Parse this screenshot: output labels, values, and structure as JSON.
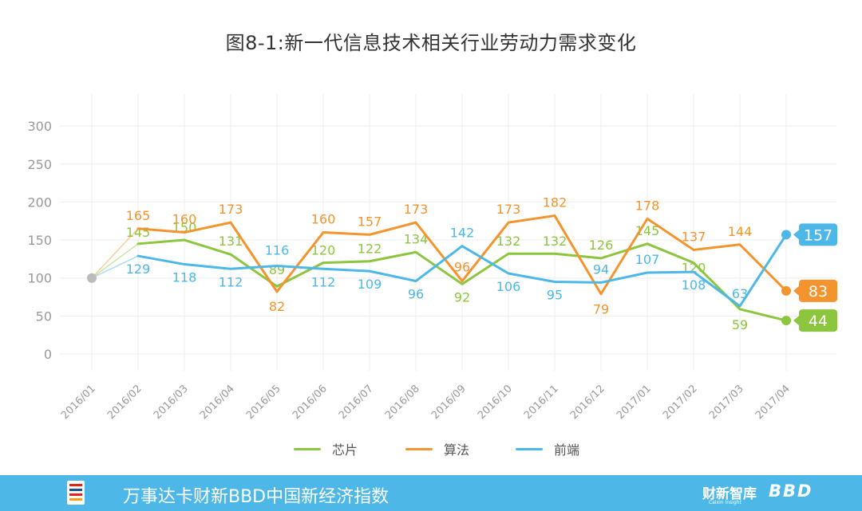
{
  "chart_data": {
    "type": "line",
    "title": "图8-1:新一代信息技术相关行业劳动力需求变化",
    "xlabel": "",
    "ylabel": "",
    "ylim": [
      0,
      300
    ],
    "yticks": [
      0,
      50,
      100,
      150,
      200,
      250,
      300
    ],
    "categories": [
      "2016/01",
      "2016/02",
      "2016/03",
      "2016/04",
      "2016/05",
      "2016/06",
      "2016/07",
      "2016/08",
      "2016/09",
      "2016/10",
      "2016/11",
      "2016/12",
      "2017/01",
      "2017/02",
      "2017/03",
      "2017/04"
    ],
    "base_value": 100,
    "series": [
      {
        "name": "芯片",
        "color": "#8cc63f",
        "values": [
          100,
          145,
          150,
          131,
          89,
          120,
          122,
          134,
          92,
          132,
          132,
          126,
          145,
          120,
          59,
          44
        ],
        "end_label": "44"
      },
      {
        "name": "算法",
        "color": "#f4942e",
        "values": [
          100,
          165,
          160,
          173,
          82,
          160,
          157,
          173,
          96,
          173,
          182,
          79,
          178,
          137,
          144,
          83
        ],
        "end_label": "83"
      },
      {
        "name": "前端",
        "color": "#4db8e8",
        "values": [
          100,
          129,
          118,
          112,
          116,
          112,
          109,
          96,
          142,
          106,
          95,
          94,
          107,
          108,
          63,
          157
        ],
        "end_label": "157"
      }
    ],
    "grid": true,
    "legend_position": "bottom"
  },
  "footer": {
    "index_name": "万事达卡财新BBD中国新经济指数",
    "brand": "财新智库",
    "brand_sub": "Caixin Insight",
    "partner": "BBD"
  },
  "colors": {
    "footer_bg": "#4db8e8",
    "grid": "#eeeeee",
    "axis_text": "#999999",
    "start_point": "#bbbbbb"
  }
}
